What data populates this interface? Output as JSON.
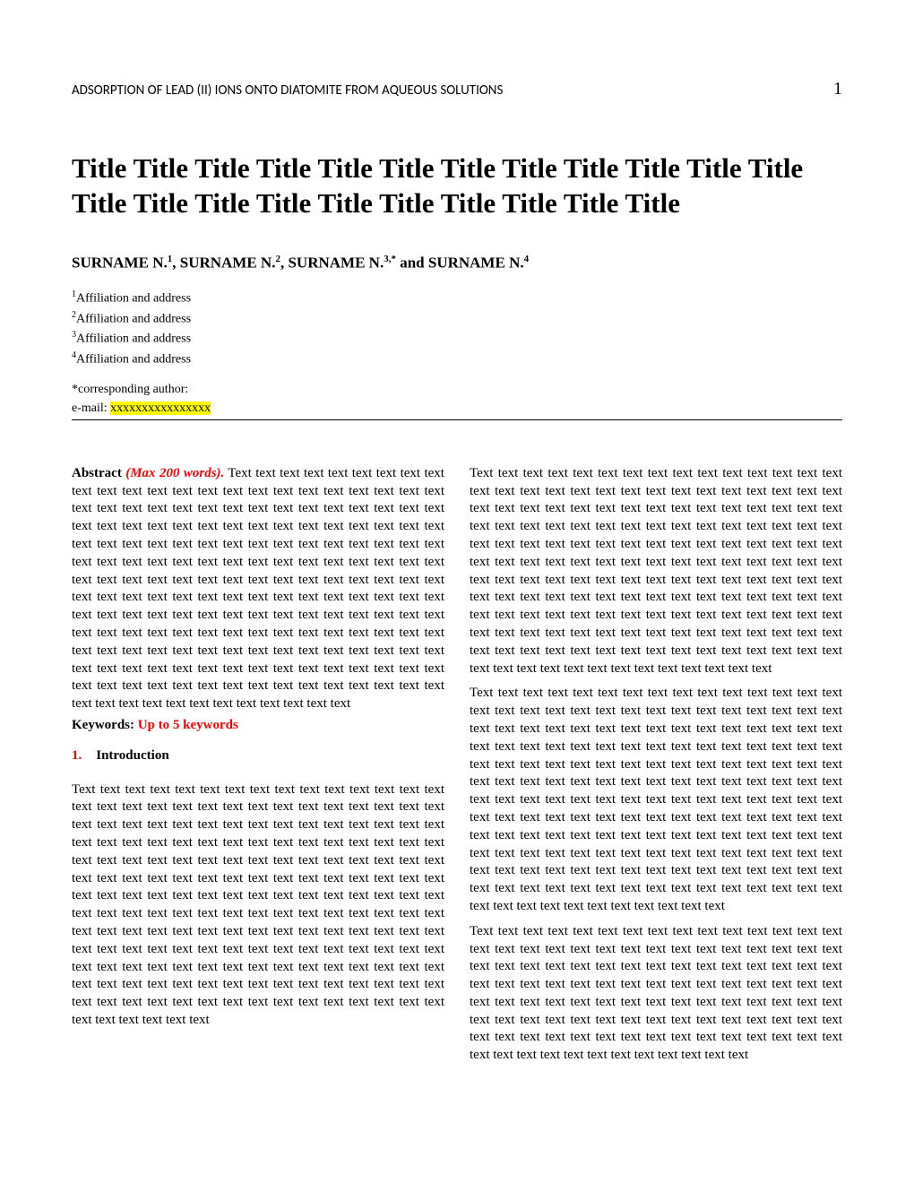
{
  "header": {
    "running_title": "ADSORPTION OF LEAD (II) IONS ONTO DIATOMITE FROM AQUEOUS SOLUTIONS",
    "page_number": "1"
  },
  "title": "Title Title Title Title Title Title Title Title Title Title Title Title Title Title Title Title Title Title Title Title Title Title",
  "authors": {
    "a1_name": "SURNAME N.",
    "a1_sup": "1",
    "sep1": ", ",
    "a2_name": "SURNAME N.",
    "a2_sup": "2",
    "sep2": ", ",
    "a3_name": "SURNAME N.",
    "a3_sup": "3,*",
    "sep3": " and ",
    "a4_name": "SURNAME N.",
    "a4_sup": "4"
  },
  "affiliations": {
    "aff1_sup": "1",
    "aff1_text": "Affiliation and address",
    "aff2_sup": "2",
    "aff2_text": "Affiliation and address",
    "aff3_sup": "3",
    "aff3_text": "Affiliation and address",
    "aff4_sup": "4",
    "aff4_text": "Affiliation and address"
  },
  "corresponding": {
    "label": "*corresponding author:",
    "email_label": "e-mail: ",
    "email_value": "xxxxxxxxxxxxxxxx"
  },
  "abstract": {
    "label": "Abstract ",
    "max_words": "(Max 200 words).",
    "text": " Text text text text text text text text text text text text text text text text text text text text text text text text text text text text text text text text text text text text text text text text text text text text text text text text text text text text text text text text text text text text text text text text text text text text text text text text text text text text text text text text text text text text text text text text text text text text text text text text text text text text text text text text text text text text text text text text text text text text text text text text text text text text text text text text text text text text text text text text text text text text text text text text text text text text text text text text text text text text text text text text text text text text text text text text text text text text text text text text text text text text text text text text text text text text text text text text text text text text text text text text text"
  },
  "keywords": {
    "label": "Keywords: ",
    "value": "Up to 5 keywords"
  },
  "section1": {
    "number": "1.",
    "heading": "Introduction",
    "para1": "Text text text text text text text text text text text text text text text text text text text text text text text text text text text text text text text text text text text text text text text text text text text text text text text text text text text text text text text text text text text text text text text text text text text text text text text text text text text text text text text text text text text text text text text text text text text text text text text text text text text text text text text text text text text text text text text text text text text text text text text text text text text text text text text text text text text text text text text text text text text text text text text text text text text text text text text text text text text text text text text text text text text text text text text text text text text text text text text text text text text text text text text text text text text text text text text text text text text text text text text text text",
    "para2": "Text text text text text text text text text text text text text text text text text text text text text text text text text text text text text text text text text text text text text text text text text text text text text text text text text text text text text text text text text text text text text text text text text text text text text text text text text text text text text text text text text text text text text text text text text text text text text text text text text text text text text text text text text text text text text text text text text text text text text text text text text text text text text text text text text text text text text text text text text text text text text text text text text text text text text text text text text text text text text text text text text text text text text text text text text text text text text text text text text text",
    "para3": "Text text text text text text text text text text text text text text text text text text text text text text text text text text text text text text text text text text text text text text text text text text text text text text text text text text text text text text text text text text text text text text text text text text text text text text text text text text text text text text text text text text text text text text text text text text text text text text text text text text text text text text text text text text text text text text text text text text text text text text text text text text text text text text text text text text text text text text text text text text text text text text text text text text text text text text text text text text text text text text text text text text text text text text text text text text text text text text text text text text text text text text text text text text text text text text text",
    "para4": "Text text text text text text text text text text text text text text text text text text text text text text text text text text text text text text text text text text text text text text text text text text text text text text text text text text text text text text text text text text text text text text text text text text text text text text text text text text text text text text text text text text text text text text text text text text text text text text text text text text text text text text text text text text text text text text text text text text text text text"
  },
  "colors": {
    "red": "#ff0000",
    "highlight": "#ffff00",
    "text": "#000000",
    "background": "#ffffff"
  }
}
